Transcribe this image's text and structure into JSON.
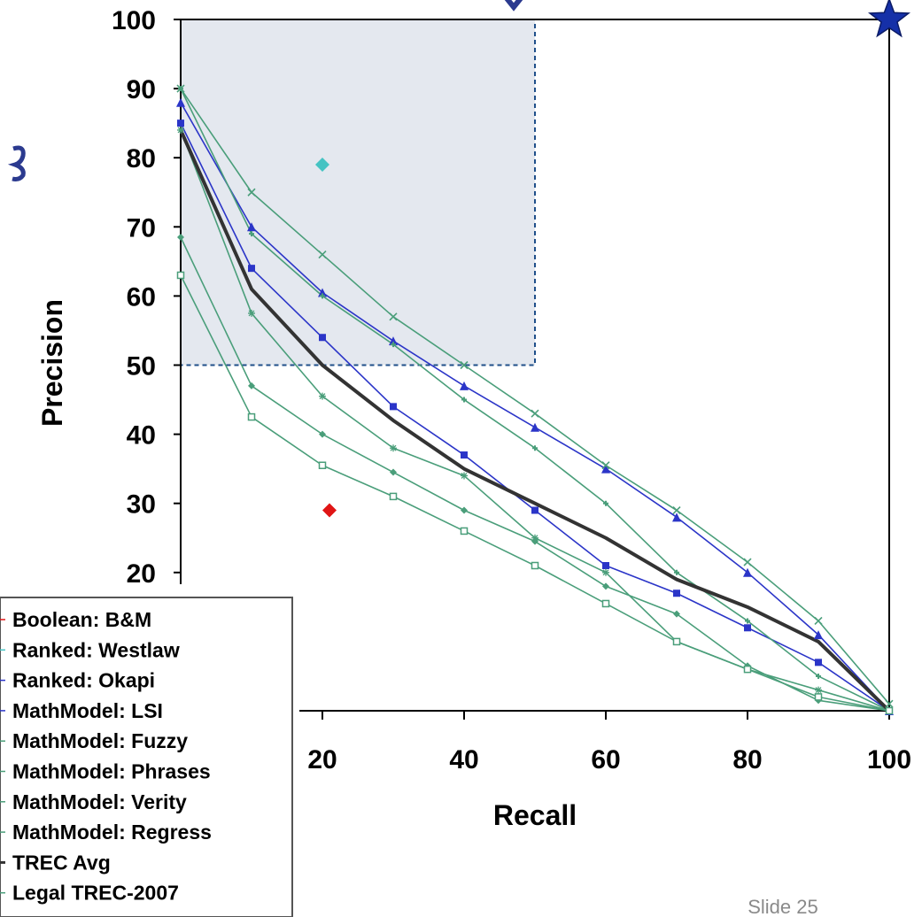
{
  "chart_data": {
    "type": "line",
    "xlabel": "Recall",
    "ylabel": "Precision",
    "xlim": [
      0,
      100
    ],
    "ylim": [
      0,
      100
    ],
    "x_ticks": [
      20,
      40,
      60,
      80,
      100
    ],
    "y_ticks": [
      20,
      30,
      40,
      50,
      60,
      70,
      80,
      90,
      100
    ],
    "highlight_region": {
      "x": [
        0,
        50
      ],
      "y": [
        50,
        100
      ],
      "fill": "#e4e8ef",
      "stroke": "#1f4f8a"
    },
    "series": [
      {
        "name": "Boolean: B&M",
        "color": "#e01515",
        "marker": "diamond",
        "points": [
          [
            21,
            29
          ]
        ]
      },
      {
        "name": "Ranked: Westlaw",
        "color": "#45c3c3",
        "marker": "diamond",
        "points": [
          [
            20,
            79
          ]
        ]
      },
      {
        "name": "Ranked: Okapi",
        "color": "#2b35c8",
        "marker": "triangle",
        "points": [
          [
            0,
            88
          ],
          [
            10,
            70
          ],
          [
            20,
            60.5
          ],
          [
            30,
            53.5
          ],
          [
            40,
            47
          ],
          [
            50,
            41
          ],
          [
            60,
            35
          ],
          [
            70,
            28
          ],
          [
            80,
            20
          ],
          [
            90,
            11
          ],
          [
            100,
            0
          ]
        ]
      },
      {
        "name": "MathModel: LSI",
        "color": "#2b35c8",
        "marker": "square",
        "points": [
          [
            0,
            85
          ],
          [
            10,
            64
          ],
          [
            20,
            54
          ],
          [
            30,
            44
          ],
          [
            40,
            37
          ],
          [
            50,
            29
          ],
          [
            60,
            21
          ],
          [
            70,
            17
          ],
          [
            80,
            12
          ],
          [
            90,
            7
          ],
          [
            100,
            0
          ]
        ]
      },
      {
        "name": "MathModel: Fuzzy",
        "color": "#4a9e7a",
        "marker": "x",
        "points": [
          [
            0,
            90
          ],
          [
            10,
            75
          ],
          [
            20,
            66
          ],
          [
            30,
            57
          ],
          [
            40,
            50
          ],
          [
            50,
            43
          ],
          [
            60,
            35.5
          ],
          [
            70,
            29
          ],
          [
            80,
            21.5
          ],
          [
            90,
            13
          ],
          [
            100,
            1
          ]
        ]
      },
      {
        "name": "MathModel: Phrases",
        "color": "#4a9e7a",
        "marker": "cross",
        "points": [
          [
            0,
            90
          ],
          [
            10,
            69
          ],
          [
            20,
            60
          ],
          [
            30,
            53
          ],
          [
            40,
            45
          ],
          [
            50,
            38
          ],
          [
            60,
            30
          ],
          [
            70,
            20
          ],
          [
            80,
            13
          ],
          [
            90,
            5
          ],
          [
            100,
            0
          ]
        ]
      },
      {
        "name": "MathModel: Verity",
        "color": "#4a9e7a",
        "marker": "plus",
        "points": [
          [
            0,
            84
          ],
          [
            10,
            57.5
          ],
          [
            20,
            45.5
          ],
          [
            30,
            38
          ],
          [
            40,
            34
          ],
          [
            50,
            25
          ],
          [
            60,
            20
          ],
          [
            70,
            10
          ],
          [
            80,
            6
          ],
          [
            90,
            3
          ],
          [
            100,
            0
          ]
        ]
      },
      {
        "name": "MathModel: Regress",
        "color": "#4a9e7a",
        "marker": "dot",
        "points": [
          [
            0,
            68.5
          ],
          [
            10,
            47
          ],
          [
            20,
            40
          ],
          [
            30,
            34.5
          ],
          [
            40,
            29
          ],
          [
            50,
            24.5
          ],
          [
            60,
            18
          ],
          [
            70,
            14
          ],
          [
            80,
            6.5
          ],
          [
            90,
            1.5
          ],
          [
            100,
            0
          ]
        ]
      },
      {
        "name": "TREC Avg",
        "color": "#333333",
        "marker": "none",
        "points": [
          [
            0,
            84
          ],
          [
            10,
            61
          ],
          [
            20,
            50
          ],
          [
            30,
            42
          ],
          [
            40,
            35
          ],
          [
            50,
            30
          ],
          [
            60,
            25
          ],
          [
            70,
            19
          ],
          [
            80,
            15
          ],
          [
            90,
            10
          ],
          [
            100,
            0
          ]
        ]
      },
      {
        "name": "Legal TREC-2007",
        "color": "#4a9e7a",
        "marker": "open-square",
        "points": [
          [
            0,
            63
          ],
          [
            10,
            42.5
          ],
          [
            20,
            35.5
          ],
          [
            30,
            31
          ],
          [
            40,
            26
          ],
          [
            50,
            21
          ],
          [
            60,
            15.5
          ],
          [
            70,
            10
          ],
          [
            80,
            6
          ],
          [
            90,
            2
          ],
          [
            100,
            0
          ]
        ]
      }
    ],
    "annotations": [
      {
        "type": "star",
        "x": 100,
        "y": 100,
        "color": "#1530a8"
      }
    ]
  },
  "footer": {
    "slide_label": "Slide 25"
  }
}
